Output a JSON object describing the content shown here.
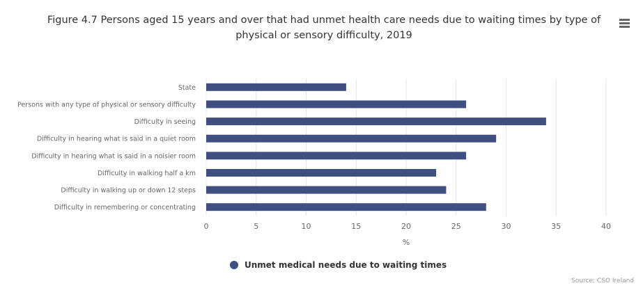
{
  "title": "Figure 4.7 Persons aged 15 years and over that had unmet health care needs due to waiting times by type of physical or sensory difficulty, 2019",
  "menu_icon": "hamburger-menu-icon",
  "credits": "Source: CSO Ireland",
  "colors": {
    "bar": "#3f4f7f",
    "grid": "#e6e6e6",
    "axis_text": "#666666"
  },
  "chart_data": {
    "type": "bar",
    "orientation": "horizontal",
    "categories": [
      "State",
      "Persons with any type of physical or sensory difficulty",
      "Difficulty in seeing",
      "Difficulty in hearing what is said in a quiet room",
      "Difficulty in hearing what is said in a noisier room",
      "Difficulty in walking half a km",
      "Difficulty in walking up or down 12 steps",
      "Difficulty in remembering or concentrating"
    ],
    "series": [
      {
        "name": "Unmet medical needs due to waiting times",
        "values": [
          14,
          26,
          34,
          29,
          26,
          23,
          24,
          28
        ]
      }
    ],
    "xlabel": "%",
    "xlim": [
      0,
      40
    ],
    "xticks": [
      0,
      5,
      10,
      15,
      20,
      25,
      30,
      35,
      40
    ],
    "grid": true,
    "legend_position": "bottom-center"
  }
}
